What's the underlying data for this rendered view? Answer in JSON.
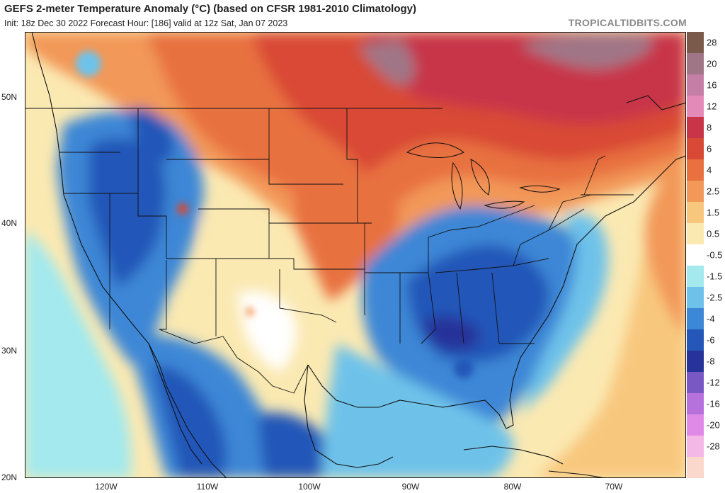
{
  "header": {
    "title": "GEFS 2-meter Temperature Anomaly (°C) (based on CFSR 1981-2010 Climatology)",
    "subtitle": "Init: 18z Dec 30 2022   Forecast Hour: [186]   valid at 12z Sat, Jan 07 2023",
    "brand": "TROPICALTIDBITS.COM"
  },
  "axes": {
    "lat_labels": [
      {
        "text": "50N",
        "value": 50
      },
      {
        "text": "40N",
        "value": 40
      },
      {
        "text": "30N",
        "value": 30
      },
      {
        "text": "20N",
        "value": 20
      }
    ],
    "lon_labels": [
      {
        "text": "120W",
        "value": -120
      },
      {
        "text": "110W",
        "value": -110
      },
      {
        "text": "100W",
        "value": -100
      },
      {
        "text": "90W",
        "value": -90
      },
      {
        "text": "80W",
        "value": -80
      },
      {
        "text": "70W",
        "value": -70
      }
    ]
  },
  "colorbar": {
    "levels": [
      {
        "label": "28",
        "color": "#7a5a4a"
      },
      {
        "label": "20",
        "color": "#a07686"
      },
      {
        "label": "16",
        "color": "#c57ea6"
      },
      {
        "label": "12",
        "color": "#e48ab8"
      },
      {
        "label": "8",
        "color": "#c83548"
      },
      {
        "label": "6",
        "color": "#d94a36"
      },
      {
        "label": "4",
        "color": "#e8713f"
      },
      {
        "label": "2.5",
        "color": "#f29858"
      },
      {
        "label": "1.5",
        "color": "#f8c77e"
      },
      {
        "label": "0.5",
        "color": "#fbe9b2"
      },
      {
        "label": "-0.5",
        "color": "#ffffff"
      },
      {
        "label": "-1.5",
        "color": "#a3e9ee"
      },
      {
        "label": "-2.5",
        "color": "#6ec2ea"
      },
      {
        "label": "-4",
        "color": "#3c87d6"
      },
      {
        "label": "-6",
        "color": "#2457b8"
      },
      {
        "label": "-8",
        "color": "#27329a"
      },
      {
        "label": "-12",
        "color": "#7a58c4"
      },
      {
        "label": "-16",
        "color": "#b771dd"
      },
      {
        "label": "-20",
        "color": "#e08ae8"
      },
      {
        "label": "-28",
        "color": "#f5b8e6"
      }
    ],
    "extra_bottom_color": "#fbd8cc"
  }
}
